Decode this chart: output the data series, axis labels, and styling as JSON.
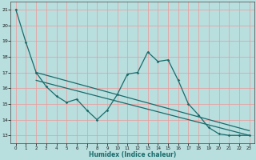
{
  "bg_color": "#b8dede",
  "grid_color": "#e8a0a0",
  "line_color": "#1a6b6b",
  "xlabel": "Humidex (Indice chaleur)",
  "ylim": [
    12.5,
    21.5
  ],
  "xlim": [
    -0.5,
    23.5
  ],
  "yticks": [
    13,
    14,
    15,
    16,
    17,
    18,
    19,
    20,
    21
  ],
  "xticks": [
    0,
    1,
    2,
    3,
    4,
    5,
    6,
    7,
    8,
    9,
    10,
    11,
    12,
    13,
    14,
    15,
    16,
    17,
    18,
    19,
    20,
    21,
    22,
    23
  ],
  "series_main_x": [
    0,
    1,
    2,
    3,
    4,
    5,
    6,
    7,
    8,
    9,
    10,
    11,
    12,
    13,
    14,
    15,
    16,
    17,
    18,
    19,
    20,
    21,
    22,
    23
  ],
  "series_main_y": [
    21.0,
    18.9,
    17.0,
    16.1,
    15.5,
    15.1,
    15.3,
    14.6,
    14.0,
    14.6,
    15.6,
    16.9,
    17.0,
    18.3,
    17.7,
    17.8,
    16.5,
    15.0,
    14.3,
    13.5,
    13.1,
    13.0,
    13.0,
    13.0
  ],
  "line2_x": [
    0,
    23
  ],
  "line2_y": [
    17.0,
    13.3
  ],
  "line3_x": [
    0,
    23
  ],
  "line3_y": [
    16.7,
    13.0
  ]
}
